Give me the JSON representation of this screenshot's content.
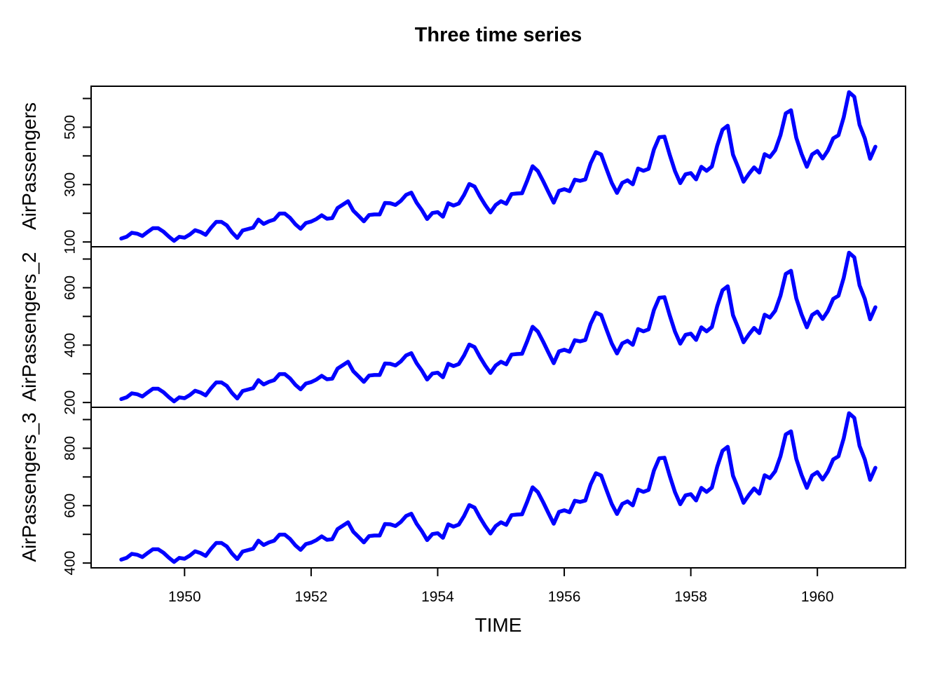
{
  "chart_data": {
    "type": "line",
    "title": "Three time series",
    "xlabel": "TIME",
    "background_color": "#FFFFFF",
    "axis_color": "#000000",
    "line_color": "#0000FF",
    "x_start": 1949,
    "x_frequency": 12,
    "n_points": 144,
    "x_ticks": [
      1950,
      1952,
      1954,
      1956,
      1958,
      1960
    ],
    "range_expansion": 0.04,
    "legend": "none",
    "grid": false,
    "panels": [
      {
        "ylabel": "AirPassengers",
        "y_ticks": [
          100,
          200,
          300,
          400,
          500,
          600
        ],
        "y_tick_labels": [
          100,
          300,
          500
        ],
        "ylim": [
          83.3,
          642.7
        ],
        "values": [
          112,
          118,
          132,
          129,
          121,
          135,
          148,
          148,
          136,
          119,
          104,
          118,
          115,
          126,
          141,
          135,
          125,
          149,
          170,
          170,
          158,
          133,
          114,
          140,
          145,
          150,
          178,
          163,
          172,
          178,
          199,
          199,
          184,
          162,
          146,
          166,
          171,
          180,
          193,
          181,
          183,
          218,
          230,
          242,
          209,
          191,
          172,
          194,
          196,
          196,
          236,
          235,
          229,
          243,
          264,
          272,
          237,
          211,
          180,
          201,
          204,
          188,
          235,
          227,
          234,
          264,
          302,
          293,
          259,
          229,
          203,
          229,
          242,
          233,
          267,
          269,
          270,
          315,
          364,
          347,
          312,
          274,
          237,
          278,
          284,
          277,
          317,
          313,
          318,
          374,
          413,
          405,
          355,
          306,
          271,
          306,
          315,
          301,
          356,
          348,
          355,
          422,
          465,
          467,
          404,
          347,
          305,
          336,
          340,
          318,
          362,
          348,
          363,
          435,
          491,
          505,
          404,
          359,
          310,
          337,
          360,
          342,
          406,
          396,
          420,
          472,
          548,
          559,
          463,
          407,
          362,
          405,
          417,
          391,
          419,
          461,
          472,
          535,
          622,
          606,
          508,
          461,
          390,
          432
        ]
      },
      {
        "ylabel": "AirPassengers_2",
        "y_ticks": [
          200,
          300,
          400,
          500,
          600,
          700
        ],
        "y_tick_labels": [
          200,
          400,
          600
        ],
        "ylim": [
          183.3,
          742.7
        ],
        "values": [
          212,
          218,
          232,
          229,
          221,
          235,
          248,
          248,
          236,
          219,
          204,
          218,
          215,
          226,
          241,
          235,
          225,
          249,
          270,
          270,
          258,
          233,
          214,
          240,
          245,
          250,
          278,
          263,
          272,
          278,
          299,
          299,
          284,
          262,
          246,
          266,
          271,
          280,
          293,
          281,
          283,
          318,
          330,
          342,
          309,
          291,
          272,
          294,
          296,
          296,
          336,
          335,
          329,
          343,
          364,
          372,
          337,
          311,
          280,
          301,
          304,
          288,
          335,
          327,
          334,
          364,
          402,
          393,
          359,
          329,
          303,
          329,
          342,
          333,
          367,
          369,
          370,
          415,
          464,
          447,
          412,
          374,
          337,
          378,
          384,
          377,
          417,
          413,
          418,
          474,
          513,
          505,
          455,
          406,
          371,
          406,
          415,
          401,
          456,
          448,
          455,
          522,
          565,
          567,
          504,
          447,
          405,
          436,
          440,
          418,
          462,
          448,
          463,
          535,
          591,
          605,
          504,
          459,
          410,
          437,
          460,
          442,
          506,
          496,
          520,
          572,
          648,
          659,
          563,
          507,
          462,
          505,
          517,
          491,
          519,
          561,
          572,
          635,
          722,
          706,
          608,
          561,
          490,
          532
        ]
      },
      {
        "ylabel": "AirPassengers_3",
        "y_ticks": [
          400,
          500,
          600,
          700,
          800,
          900
        ],
        "y_tick_labels": [
          400,
          600,
          800
        ],
        "ylim": [
          383.3,
          942.7
        ],
        "values": [
          412,
          418,
          432,
          429,
          421,
          435,
          448,
          448,
          436,
          419,
          404,
          418,
          415,
          426,
          441,
          435,
          425,
          449,
          470,
          470,
          458,
          433,
          414,
          440,
          445,
          450,
          478,
          463,
          472,
          478,
          499,
          499,
          484,
          462,
          446,
          466,
          471,
          480,
          493,
          481,
          483,
          518,
          530,
          542,
          509,
          491,
          472,
          494,
          496,
          496,
          536,
          535,
          529,
          543,
          564,
          572,
          537,
          511,
          480,
          501,
          504,
          488,
          535,
          527,
          534,
          564,
          602,
          593,
          559,
          529,
          503,
          529,
          542,
          533,
          567,
          569,
          570,
          615,
          664,
          647,
          612,
          574,
          537,
          578,
          584,
          577,
          617,
          613,
          618,
          674,
          713,
          705,
          655,
          606,
          571,
          606,
          615,
          601,
          656,
          648,
          655,
          722,
          765,
          767,
          704,
          647,
          605,
          636,
          640,
          618,
          662,
          648,
          663,
          735,
          791,
          805,
          704,
          659,
          610,
          637,
          660,
          642,
          706,
          696,
          720,
          772,
          848,
          859,
          763,
          707,
          662,
          705,
          717,
          691,
          719,
          761,
          772,
          835,
          922,
          906,
          808,
          761,
          690,
          732
        ]
      }
    ]
  }
}
